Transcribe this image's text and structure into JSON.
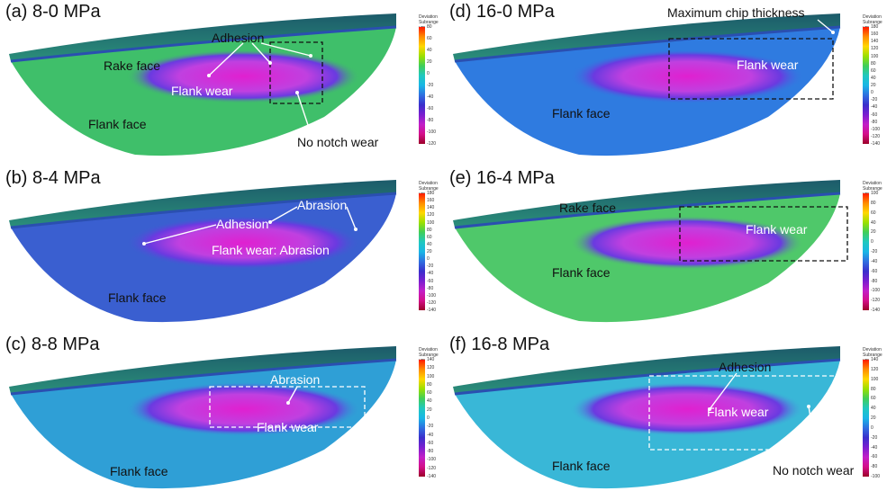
{
  "colors": {
    "scale_gradient": [
      "#ff1a00",
      "#ff8c00",
      "#ffd700",
      "#9be000",
      "#3fce5a",
      "#1fc8c0",
      "#19b6e6",
      "#2f6fe0",
      "#3a2fcc",
      "#7a1fd0",
      "#c21fc8",
      "#d40f8a",
      "#9c0028"
    ]
  },
  "scale": {
    "head_line1": "Deviation",
    "head_line2": "Subrange",
    "unit": "μm"
  },
  "panels": [
    {
      "key": "a",
      "title": "(a) 8-0 MPa",
      "labels": [
        {
          "id": "adhesion",
          "text": "Adhesion",
          "color": "dark"
        },
        {
          "id": "rake-face",
          "text": "Rake face",
          "color": "dark"
        },
        {
          "id": "flank-wear",
          "text": "Flank wear",
          "color": "light"
        },
        {
          "id": "flank-face",
          "text": "Flank face",
          "color": "dark"
        },
        {
          "id": "no-notch-wear",
          "text": "No notch wear",
          "color": "dark"
        }
      ],
      "scale_ticks": [
        "80",
        "60",
        "40",
        "20",
        "0",
        "-20",
        "-40",
        "-60",
        "-80",
        "-100",
        "-120"
      ]
    },
    {
      "key": "b",
      "title": "(b) 8-4 MPa",
      "labels": [
        {
          "id": "adhesion",
          "text": "Adhesion",
          "color": "light"
        },
        {
          "id": "abrasion",
          "text": "Abrasion",
          "color": "light"
        },
        {
          "id": "flank-wear",
          "text": "Flank wear: Abrasion",
          "color": "light"
        },
        {
          "id": "flank-face",
          "text": "Flank face",
          "color": "dark"
        }
      ],
      "scale_ticks": [
        "180",
        "160",
        "140",
        "120",
        "100",
        "80",
        "60",
        "40",
        "20",
        "0",
        "-20",
        "-40",
        "-60",
        "-80",
        "-100",
        "-120",
        "-140"
      ]
    },
    {
      "key": "c",
      "title": "(c) 8-8 MPa",
      "labels": [
        {
          "id": "abrasion",
          "text": "Abrasion",
          "color": "light"
        },
        {
          "id": "flank-wear",
          "text": "Flank wear",
          "color": "light"
        },
        {
          "id": "flank-face",
          "text": "Flank face",
          "color": "dark"
        }
      ],
      "scale_ticks": [
        "140",
        "120",
        "100",
        "80",
        "60",
        "40",
        "20",
        "0",
        "-20",
        "-40",
        "-60",
        "-80",
        "-100",
        "-120",
        "-140"
      ]
    },
    {
      "key": "d",
      "title": "(d) 16-0 MPa",
      "labels": [
        {
          "id": "max-chip",
          "text": "Maximum chip thickness",
          "color": "dark"
        },
        {
          "id": "flank-wear",
          "text": "Flank wear",
          "color": "light"
        },
        {
          "id": "flank-face",
          "text": "Flank face",
          "color": "dark"
        }
      ],
      "scale_ticks": [
        "180",
        "160",
        "140",
        "120",
        "100",
        "80",
        "60",
        "40",
        "20",
        "0",
        "-20",
        "-40",
        "-60",
        "-80",
        "-100",
        "-120",
        "-140"
      ]
    },
    {
      "key": "e",
      "title": "(e) 16-4 MPa",
      "labels": [
        {
          "id": "rake-face",
          "text": "Rake face",
          "color": "dark"
        },
        {
          "id": "flank-wear",
          "text": "Flank wear",
          "color": "light"
        },
        {
          "id": "flank-face",
          "text": "Flank face",
          "color": "dark"
        }
      ],
      "scale_ticks": [
        "100",
        "80",
        "60",
        "40",
        "20",
        "0",
        "-20",
        "-40",
        "-60",
        "-80",
        "-100",
        "-120",
        "-140"
      ]
    },
    {
      "key": "f",
      "title": "(f) 16-8 MPa",
      "labels": [
        {
          "id": "adhesion",
          "text": "Adhesion",
          "color": "dark"
        },
        {
          "id": "flank-wear",
          "text": "Flank wear",
          "color": "light"
        },
        {
          "id": "no-notch-wear",
          "text": "No notch wear",
          "color": "dark"
        },
        {
          "id": "flank-face",
          "text": "Flank face",
          "color": "dark"
        }
      ],
      "scale_ticks": [
        "140",
        "120",
        "100",
        "80",
        "60",
        "40",
        "20",
        "0",
        "-20",
        "-40",
        "-60",
        "-80",
        "-100"
      ]
    }
  ]
}
